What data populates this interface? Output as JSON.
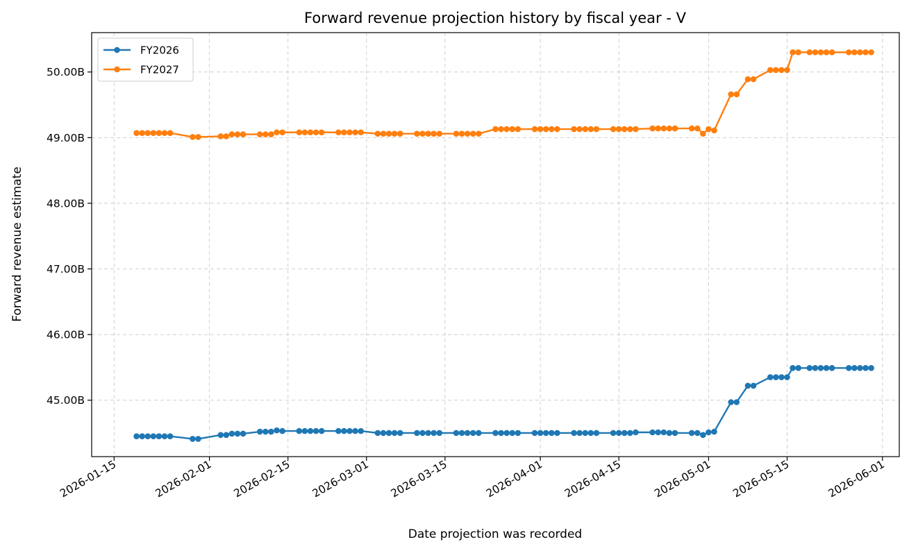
{
  "chart_data": {
    "type": "line",
    "title": "Forward revenue projection history by fiscal year - V",
    "xlabel": "Date projection was recorded",
    "ylabel": "Forward revenue estimate",
    "x_type": "date",
    "xlim": [
      "2026-01-11",
      "2026-06-04"
    ],
    "ylim": [
      44.14,
      50.6
    ],
    "x_ticks": [
      "2026-01-15",
      "2026-02-01",
      "2026-02-15",
      "2026-03-01",
      "2026-03-15",
      "2026-04-01",
      "2026-04-15",
      "2026-05-01",
      "2026-05-15",
      "2026-06-01"
    ],
    "y_ticks": [
      45,
      46,
      47,
      48,
      49,
      50
    ],
    "y_tick_labels": [
      "45.00B",
      "46.00B",
      "47.00B",
      "48.00B",
      "49.00B",
      "50.00B"
    ],
    "grid": true,
    "legend_position": "top-left",
    "series": [
      {
        "name": "FY2026",
        "color": "#1f77b4",
        "points": [
          [
            "2026-01-19",
            44.45
          ],
          [
            "2026-01-20",
            44.45
          ],
          [
            "2026-01-21",
            44.45
          ],
          [
            "2026-01-22",
            44.45
          ],
          [
            "2026-01-23",
            44.45
          ],
          [
            "2026-01-24",
            44.45
          ],
          [
            "2026-01-25",
            44.45
          ],
          [
            "2026-01-29",
            44.41
          ],
          [
            "2026-01-30",
            44.41
          ],
          [
            "2026-02-03",
            44.47
          ],
          [
            "2026-02-04",
            44.47
          ],
          [
            "2026-02-05",
            44.49
          ],
          [
            "2026-02-06",
            44.49
          ],
          [
            "2026-02-07",
            44.49
          ],
          [
            "2026-02-10",
            44.52
          ],
          [
            "2026-02-11",
            44.52
          ],
          [
            "2026-02-12",
            44.52
          ],
          [
            "2026-02-13",
            44.54
          ],
          [
            "2026-02-14",
            44.53
          ],
          [
            "2026-02-17",
            44.53
          ],
          [
            "2026-02-18",
            44.53
          ],
          [
            "2026-02-19",
            44.53
          ],
          [
            "2026-02-20",
            44.53
          ],
          [
            "2026-02-21",
            44.53
          ],
          [
            "2026-02-24",
            44.53
          ],
          [
            "2026-02-25",
            44.53
          ],
          [
            "2026-02-26",
            44.53
          ],
          [
            "2026-02-27",
            44.53
          ],
          [
            "2026-02-28",
            44.53
          ],
          [
            "2026-03-03",
            44.5
          ],
          [
            "2026-03-04",
            44.5
          ],
          [
            "2026-03-05",
            44.5
          ],
          [
            "2026-03-06",
            44.5
          ],
          [
            "2026-03-07",
            44.5
          ],
          [
            "2026-03-10",
            44.5
          ],
          [
            "2026-03-11",
            44.5
          ],
          [
            "2026-03-12",
            44.5
          ],
          [
            "2026-03-13",
            44.5
          ],
          [
            "2026-03-14",
            44.5
          ],
          [
            "2026-03-17",
            44.5
          ],
          [
            "2026-03-18",
            44.5
          ],
          [
            "2026-03-19",
            44.5
          ],
          [
            "2026-03-20",
            44.5
          ],
          [
            "2026-03-21",
            44.5
          ],
          [
            "2026-03-24",
            44.5
          ],
          [
            "2026-03-25",
            44.5
          ],
          [
            "2026-03-26",
            44.5
          ],
          [
            "2026-03-27",
            44.5
          ],
          [
            "2026-03-28",
            44.5
          ],
          [
            "2026-03-31",
            44.5
          ],
          [
            "2026-04-01",
            44.5
          ],
          [
            "2026-04-02",
            44.5
          ],
          [
            "2026-04-03",
            44.5
          ],
          [
            "2026-04-04",
            44.5
          ],
          [
            "2026-04-07",
            44.5
          ],
          [
            "2026-04-08",
            44.5
          ],
          [
            "2026-04-09",
            44.5
          ],
          [
            "2026-04-10",
            44.5
          ],
          [
            "2026-04-11",
            44.5
          ],
          [
            "2026-04-14",
            44.5
          ],
          [
            "2026-04-15",
            44.5
          ],
          [
            "2026-04-16",
            44.5
          ],
          [
            "2026-04-17",
            44.5
          ],
          [
            "2026-04-18",
            44.51
          ],
          [
            "2026-04-21",
            44.51
          ],
          [
            "2026-04-22",
            44.51
          ],
          [
            "2026-04-23",
            44.51
          ],
          [
            "2026-04-24",
            44.5
          ],
          [
            "2026-04-25",
            44.5
          ],
          [
            "2026-04-28",
            44.5
          ],
          [
            "2026-04-29",
            44.5
          ],
          [
            "2026-04-30",
            44.47
          ],
          [
            "2026-05-01",
            44.51
          ],
          [
            "2026-05-02",
            44.52
          ],
          [
            "2026-05-05",
            44.97
          ],
          [
            "2026-05-06",
            44.97
          ],
          [
            "2026-05-08",
            45.22
          ],
          [
            "2026-05-09",
            45.22
          ],
          [
            "2026-05-12",
            45.35
          ],
          [
            "2026-05-13",
            45.35
          ],
          [
            "2026-05-14",
            45.35
          ],
          [
            "2026-05-15",
            45.35
          ],
          [
            "2026-05-16",
            45.49
          ],
          [
            "2026-05-17",
            45.49
          ],
          [
            "2026-05-19",
            45.49
          ],
          [
            "2026-05-20",
            45.49
          ],
          [
            "2026-05-21",
            45.49
          ],
          [
            "2026-05-22",
            45.49
          ],
          [
            "2026-05-23",
            45.49
          ],
          [
            "2026-05-26",
            45.49
          ],
          [
            "2026-05-27",
            45.49
          ],
          [
            "2026-05-28",
            45.49
          ],
          [
            "2026-05-29",
            45.49
          ],
          [
            "2026-05-30",
            45.49
          ]
        ]
      },
      {
        "name": "FY2027",
        "color": "#ff7f0e",
        "points": [
          [
            "2026-01-19",
            49.07
          ],
          [
            "2026-01-20",
            49.07
          ],
          [
            "2026-01-21",
            49.07
          ],
          [
            "2026-01-22",
            49.07
          ],
          [
            "2026-01-23",
            49.07
          ],
          [
            "2026-01-24",
            49.07
          ],
          [
            "2026-01-25",
            49.07
          ],
          [
            "2026-01-29",
            49.01
          ],
          [
            "2026-01-30",
            49.01
          ],
          [
            "2026-02-03",
            49.02
          ],
          [
            "2026-02-04",
            49.02
          ],
          [
            "2026-02-05",
            49.05
          ],
          [
            "2026-02-06",
            49.05
          ],
          [
            "2026-02-07",
            49.05
          ],
          [
            "2026-02-10",
            49.05
          ],
          [
            "2026-02-11",
            49.05
          ],
          [
            "2026-02-12",
            49.05
          ],
          [
            "2026-02-13",
            49.08
          ],
          [
            "2026-02-14",
            49.08
          ],
          [
            "2026-02-17",
            49.08
          ],
          [
            "2026-02-18",
            49.08
          ],
          [
            "2026-02-19",
            49.08
          ],
          [
            "2026-02-20",
            49.08
          ],
          [
            "2026-02-21",
            49.08
          ],
          [
            "2026-02-24",
            49.08
          ],
          [
            "2026-02-25",
            49.08
          ],
          [
            "2026-02-26",
            49.08
          ],
          [
            "2026-02-27",
            49.08
          ],
          [
            "2026-02-28",
            49.08
          ],
          [
            "2026-03-03",
            49.06
          ],
          [
            "2026-03-04",
            49.06
          ],
          [
            "2026-03-05",
            49.06
          ],
          [
            "2026-03-06",
            49.06
          ],
          [
            "2026-03-07",
            49.06
          ],
          [
            "2026-03-10",
            49.06
          ],
          [
            "2026-03-11",
            49.06
          ],
          [
            "2026-03-12",
            49.06
          ],
          [
            "2026-03-13",
            49.06
          ],
          [
            "2026-03-14",
            49.06
          ],
          [
            "2026-03-17",
            49.06
          ],
          [
            "2026-03-18",
            49.06
          ],
          [
            "2026-03-19",
            49.06
          ],
          [
            "2026-03-20",
            49.06
          ],
          [
            "2026-03-21",
            49.06
          ],
          [
            "2026-03-24",
            49.13
          ],
          [
            "2026-03-25",
            49.13
          ],
          [
            "2026-03-26",
            49.13
          ],
          [
            "2026-03-27",
            49.13
          ],
          [
            "2026-03-28",
            49.13
          ],
          [
            "2026-03-31",
            49.13
          ],
          [
            "2026-04-01",
            49.13
          ],
          [
            "2026-04-02",
            49.13
          ],
          [
            "2026-04-03",
            49.13
          ],
          [
            "2026-04-04",
            49.13
          ],
          [
            "2026-04-07",
            49.13
          ],
          [
            "2026-04-08",
            49.13
          ],
          [
            "2026-04-09",
            49.13
          ],
          [
            "2026-04-10",
            49.13
          ],
          [
            "2026-04-11",
            49.13
          ],
          [
            "2026-04-14",
            49.13
          ],
          [
            "2026-04-15",
            49.13
          ],
          [
            "2026-04-16",
            49.13
          ],
          [
            "2026-04-17",
            49.13
          ],
          [
            "2026-04-18",
            49.13
          ],
          [
            "2026-04-21",
            49.14
          ],
          [
            "2026-04-22",
            49.14
          ],
          [
            "2026-04-23",
            49.14
          ],
          [
            "2026-04-24",
            49.14
          ],
          [
            "2026-04-25",
            49.14
          ],
          [
            "2026-04-28",
            49.14
          ],
          [
            "2026-04-29",
            49.14
          ],
          [
            "2026-04-30",
            49.06
          ],
          [
            "2026-05-01",
            49.13
          ],
          [
            "2026-05-02",
            49.11
          ],
          [
            "2026-05-05",
            49.66
          ],
          [
            "2026-05-06",
            49.66
          ],
          [
            "2026-05-08",
            49.89
          ],
          [
            "2026-05-09",
            49.89
          ],
          [
            "2026-05-12",
            50.03
          ],
          [
            "2026-05-13",
            50.03
          ],
          [
            "2026-05-14",
            50.03
          ],
          [
            "2026-05-15",
            50.03
          ],
          [
            "2026-05-16",
            50.3
          ],
          [
            "2026-05-17",
            50.3
          ],
          [
            "2026-05-19",
            50.3
          ],
          [
            "2026-05-20",
            50.3
          ],
          [
            "2026-05-21",
            50.3
          ],
          [
            "2026-05-22",
            50.3
          ],
          [
            "2026-05-23",
            50.3
          ],
          [
            "2026-05-26",
            50.3
          ],
          [
            "2026-05-27",
            50.3
          ],
          [
            "2026-05-28",
            50.3
          ],
          [
            "2026-05-29",
            50.3
          ],
          [
            "2026-05-30",
            50.3
          ]
        ]
      }
    ]
  }
}
